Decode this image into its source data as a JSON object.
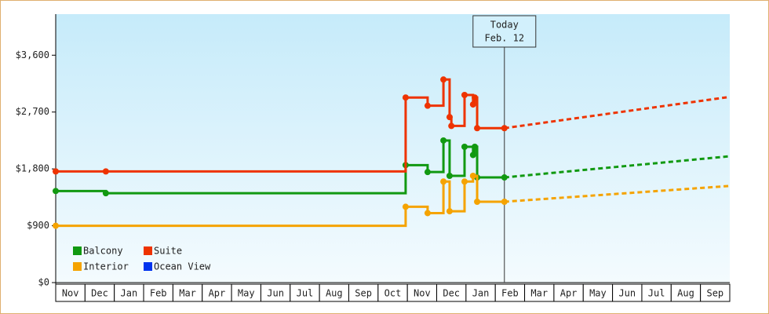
{
  "chart_data": {
    "type": "step-line",
    "categories": [
      "Nov",
      "Dec",
      "Jan",
      "Feb",
      "Mar",
      "Apr",
      "May",
      "Jun",
      "Jul",
      "Aug",
      "Sep",
      "Oct",
      "Nov",
      "Dec",
      "Jan",
      "Feb",
      "Mar",
      "Apr",
      "May",
      "Jun",
      "Jul",
      "Aug",
      "Sep"
    ],
    "xlim": [
      0,
      23
    ],
    "ylim": [
      0,
      4250
    ],
    "yticks": [
      {
        "value": 0,
        "label": "$0"
      },
      {
        "value": 900,
        "label": "$900"
      },
      {
        "value": 1800,
        "label": "$1,800"
      },
      {
        "value": 2700,
        "label": "$2,700"
      },
      {
        "value": 3600,
        "label": "$3,600"
      }
    ],
    "legend": "lower left",
    "annotation": {
      "x": 15.31,
      "lines": [
        "Today",
        "Feb. 12"
      ]
    },
    "series": [
      {
        "name": "Balcony",
        "color": "#119911",
        "x": [
          0,
          1.71,
          11.94,
          12.69,
          13.23,
          13.44,
          13.95,
          14.24,
          14.3,
          14.38,
          15.31
        ],
        "values": [
          1450,
          1415,
          1860,
          1750,
          2250,
          1690,
          2150,
          2020,
          2150,
          1665,
          1665
        ],
        "forecast": {
          "x": [
            15.31,
            23
          ],
          "values": [
            1665,
            2000
          ]
        }
      },
      {
        "name": "Suite",
        "color": "#ee3300",
        "x": [
          0,
          1.71,
          11.94,
          12.69,
          13.23,
          13.44,
          13.5,
          13.95,
          14.24,
          14.3,
          14.38,
          15.31
        ],
        "values": [
          1760,
          1760,
          2930,
          2800,
          3215,
          2620,
          2480,
          2970,
          2820,
          2930,
          2445,
          2445
        ],
        "forecast": {
          "x": [
            15.31,
            23
          ],
          "values": [
            2445,
            2940
          ]
        }
      },
      {
        "name": "Interior",
        "color": "#f5a300",
        "x": [
          0,
          11.94,
          12.69,
          13.23,
          13.44,
          13.95,
          14.24,
          14.38,
          15.31
        ],
        "values": [
          900,
          1200,
          1100,
          1600,
          1130,
          1600,
          1690,
          1280,
          1280
        ],
        "forecast": {
          "x": [
            15.31,
            23
          ],
          "values": [
            1280,
            1530
          ]
        }
      },
      {
        "name": "Ocean View",
        "color": "#0033ee",
        "x": [],
        "values": []
      }
    ]
  }
}
